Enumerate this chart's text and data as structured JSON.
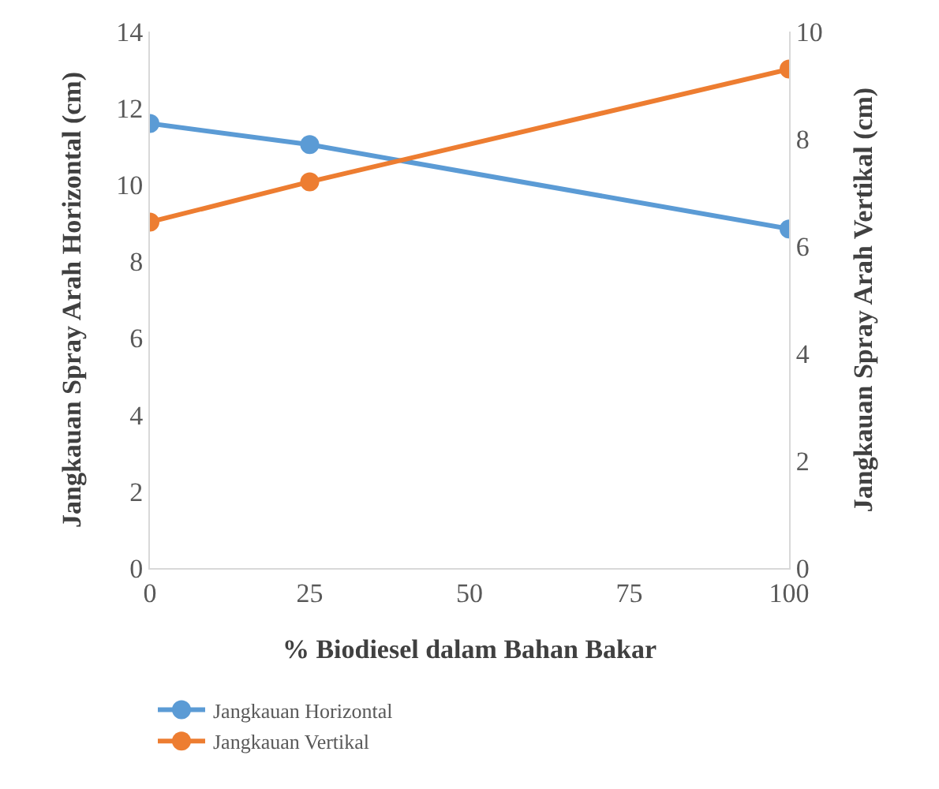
{
  "chart_data": {
    "type": "line",
    "xlabel": "% Biodiesel dalam Bahan Bakar",
    "ylabel": "Jangkauan Spray Arah Horizontal (cm)",
    "y2label": "Jangkauan Spray Arah Vertikal (cm)",
    "x": [
      0,
      25,
      100
    ],
    "series": [
      {
        "name": "Jangkauan Horizontal",
        "color": "#5b9bd5",
        "values": [
          11.6,
          11.05,
          8.85
        ]
      },
      {
        "name": "Jangkauan Vertikal",
        "color": "#ed7d31",
        "values": [
          6.45,
          7.2,
          9.3
        ],
        "axis": "y2"
      }
    ],
    "xlim": [
      0,
      100
    ],
    "xticks": [
      0,
      25,
      50,
      75,
      100
    ],
    "ylim": [
      0,
      14
    ],
    "yticks": [
      0,
      2,
      4,
      6,
      8,
      10,
      12,
      14
    ],
    "y2lim": [
      0,
      10
    ],
    "y2ticks": [
      0,
      2,
      4,
      6,
      8,
      10
    ],
    "grid": false,
    "legend": "bottom left",
    "marker": "circle",
    "line_style": "solid"
  }
}
